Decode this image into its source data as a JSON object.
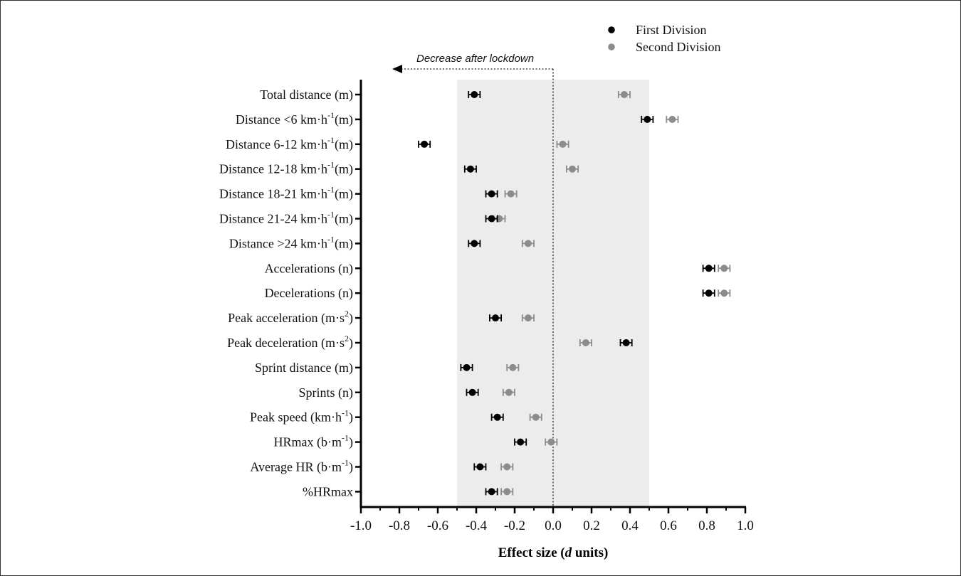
{
  "chart_data": {
    "type": "scatter",
    "subtype": "forest-plot",
    "xlabel": "Effect size (d units)",
    "xlabel_parts": {
      "before": "Effect size (",
      "italic": "d",
      "after": " units)"
    },
    "xlim": [
      -1.0,
      1.0
    ],
    "xticks": [
      "-1.0",
      "-0.8",
      "-0.6",
      "-0.4",
      "-0.2",
      "0.0",
      "0.2",
      "0.4",
      "0.6",
      "0.8",
      "1.0"
    ],
    "shaded_region": [
      -0.5,
      0.5
    ],
    "reference_line": 0,
    "annotation": "Decrease after lockdown",
    "legend_position": "top-right",
    "categories": [
      {
        "pre": "Total distance (m)",
        "sup": "",
        "post": ""
      },
      {
        "pre": "Distance <6 km·h",
        "sup": "-1",
        "post": "(m)"
      },
      {
        "pre": "Distance 6-12 km·h",
        "sup": "-1",
        "post": "(m)"
      },
      {
        "pre": "Distance 12-18 km·h",
        "sup": "-1",
        "post": "(m)"
      },
      {
        "pre": "Distance 18-21 km·h",
        "sup": "-1",
        "post": "(m)"
      },
      {
        "pre": "Distance 21-24 km·h",
        "sup": "-1",
        "post": "(m)"
      },
      {
        "pre": "Distance >24 km·h",
        "sup": "-1",
        "post": "(m)"
      },
      {
        "pre": "Accelerations (n)",
        "sup": "",
        "post": ""
      },
      {
        "pre": "Decelerations (n)",
        "sup": "",
        "post": ""
      },
      {
        "pre": "Peak acceleration (m·s",
        "sup": "2",
        "post": ")"
      },
      {
        "pre": "Peak deceleration (m·s",
        "sup": "2",
        "post": ")"
      },
      {
        "pre": "Sprint distance (m)",
        "sup": "",
        "post": ""
      },
      {
        "pre": "Sprints (n)",
        "sup": "",
        "post": ""
      },
      {
        "pre": "Peak speed (km·h",
        "sup": "-1",
        "post": ")"
      },
      {
        "pre": "HRmax (b·m",
        "sup": "-1",
        "post": ")"
      },
      {
        "pre": "Average HR (b·m",
        "sup": "-1",
        "post": ")"
      },
      {
        "pre": "%HRmax",
        "sup": "",
        "post": ""
      }
    ],
    "series": [
      {
        "name": "First Division",
        "color": "#000000",
        "values": [
          -0.41,
          0.49,
          -0.67,
          -0.43,
          -0.32,
          -0.32,
          -0.41,
          0.81,
          0.81,
          -0.3,
          0.38,
          -0.45,
          -0.42,
          -0.29,
          -0.17,
          -0.38,
          -0.32
        ],
        "error": 0.03
      },
      {
        "name": "Second Division",
        "color": "#8c8c8c",
        "values": [
          0.37,
          0.62,
          0.05,
          0.1,
          -0.22,
          -0.28,
          -0.13,
          0.89,
          0.89,
          -0.13,
          0.17,
          -0.21,
          -0.23,
          -0.09,
          -0.01,
          -0.24,
          -0.24
        ],
        "error": 0.03
      }
    ]
  }
}
